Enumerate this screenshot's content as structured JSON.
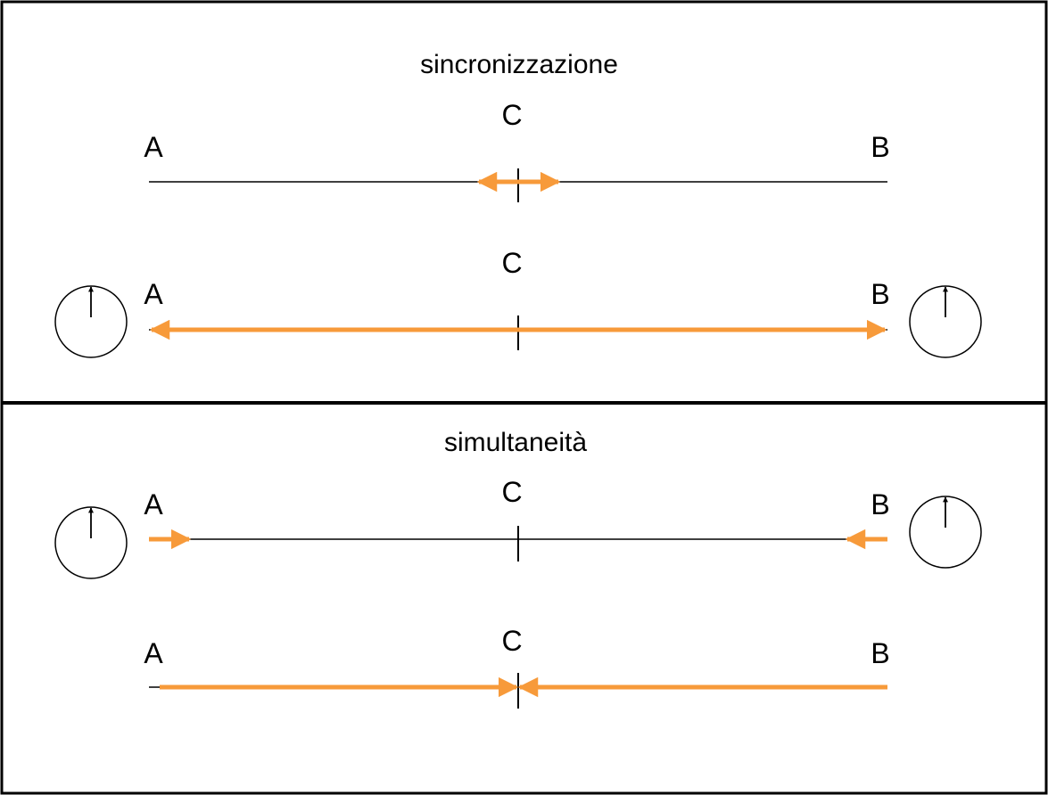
{
  "colors": {
    "arrow": "#f79a3a",
    "line": "#000000",
    "background": "#ffffff"
  },
  "top_panel": {
    "title": "sincronizzazione",
    "row1": {
      "left": "A",
      "center": "C",
      "right": "B"
    },
    "row2": {
      "left": "A",
      "center": "C",
      "right": "B"
    }
  },
  "bottom_panel": {
    "title": "simultaneità",
    "row1": {
      "left": "A",
      "center": "C",
      "right": "B"
    },
    "row2": {
      "left": "A",
      "center": "C",
      "right": "B"
    }
  },
  "icons": [
    "clock-icon"
  ]
}
